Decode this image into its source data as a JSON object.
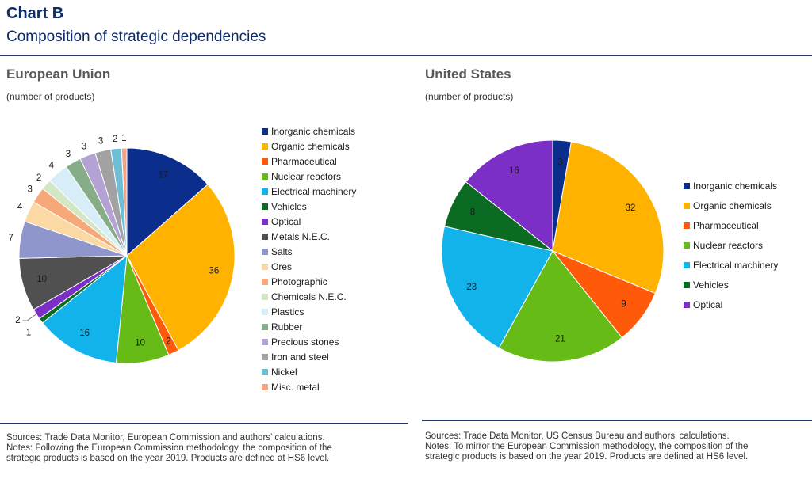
{
  "header": {
    "label": "Chart B",
    "title": "Composition of strategic dependencies"
  },
  "chart_data": [
    {
      "type": "pie",
      "title": "European Union",
      "subtitle": "(number of products)",
      "categories": [
        "Inorganic chemicals",
        "Organic chemicals",
        "Pharmaceutical",
        "Nuclear reactors",
        "Electrical machinery",
        "Vehicles",
        "Optical",
        "Metals N.E.C.",
        "Salts",
        "Ores",
        "Photographic",
        "Chemicals N.E.C.",
        "Plastics",
        "Rubber",
        "Precious stones",
        "Iron and steel",
        "Nickel",
        "Misc. metal"
      ],
      "values": [
        17,
        36,
        2,
        10,
        16,
        1,
        2,
        10,
        7,
        4,
        3,
        2,
        4,
        3,
        3,
        3,
        2,
        1
      ],
      "colors": [
        "#0b2e8c",
        "#ffb300",
        "#ff5a0a",
        "#66bb16",
        "#12b2ea",
        "#0c6b22",
        "#7b2fc7",
        "#505050",
        "#8f96cc",
        "#fbd9a4",
        "#f6a878",
        "#d4e7c4",
        "#d7eef8",
        "#86ad87",
        "#b4a2d4",
        "#a2a2a2",
        "#6ebfd5",
        "#f1a586"
      ],
      "legend": "right"
    },
    {
      "type": "pie",
      "title": "United States",
      "subtitle": "(number of products)",
      "categories": [
        "Inorganic chemicals",
        "Organic chemicals",
        "Pharmaceutical",
        "Nuclear reactors",
        "Electrical machinery",
        "Vehicles",
        "Optical"
      ],
      "values": [
        3,
        32,
        9,
        21,
        23,
        8,
        16
      ],
      "colors": [
        "#0b2e8c",
        "#ffb300",
        "#ff5a0a",
        "#66bb16",
        "#12b2ea",
        "#0c6b22",
        "#7b2fc7"
      ],
      "legend": "right"
    }
  ],
  "notes": {
    "eu": [
      "Sources: Trade Data Monitor, European Commission and authors’ calculations.",
      "Notes: Following the European Commission methodology, the composition of the",
      "strategic products is based on the year 2019. Products are defined at HS6 level."
    ],
    "us": [
      "Sources: Trade Data Monitor, US Census Bureau and authors’ calculations.",
      "Notes: To mirror the European Commission methodology, the composition of the",
      "strategic products is based on the year 2019. Products are defined at HS6 level."
    ]
  }
}
